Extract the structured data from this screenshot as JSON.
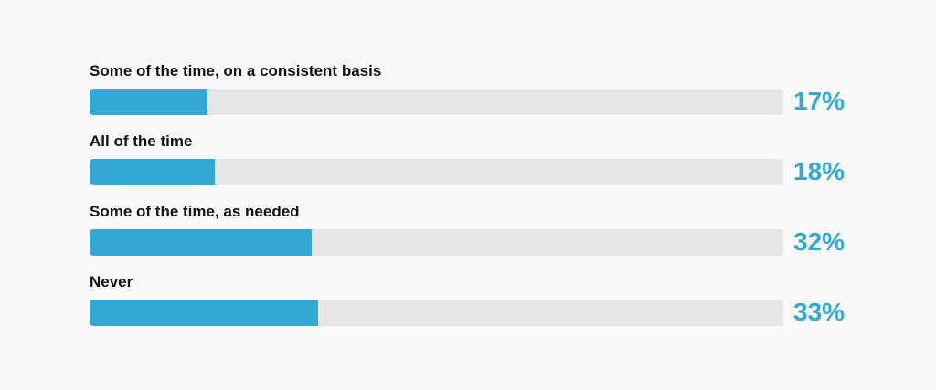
{
  "chart_data": {
    "type": "bar",
    "orientation": "horizontal",
    "categories": [
      "Some of the time, on a consistent basis",
      "All of the time",
      "Some of the time, as needed",
      "Never"
    ],
    "values": [
      17,
      18,
      32,
      33
    ],
    "value_labels": [
      "17%",
      "18%",
      "32%",
      "33%"
    ],
    "xlim": [
      0,
      100
    ],
    "grid": false,
    "legend": "none"
  },
  "colors": {
    "bar_fill": "#33a8d4",
    "bar_track": "#e6e6e6",
    "value_text": "#33a8d4",
    "label_text": "#111111",
    "background": "#fafafa"
  }
}
